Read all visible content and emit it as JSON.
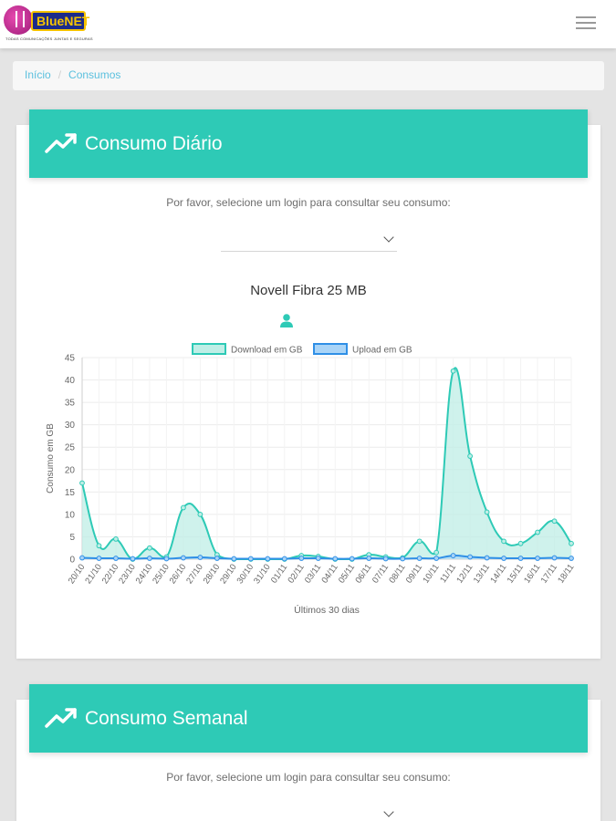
{
  "header": {
    "logo_text": "BlueNET",
    "logo_tagline": "TODAS COMUNICAÇÕES JUNTAS E SEGURAS",
    "menu_icon": "hamburger-icon"
  },
  "breadcrumb": {
    "home": "Início",
    "separator": "/",
    "current": "Consumos"
  },
  "daily": {
    "title": "Consumo Diário",
    "title_icon": "trending-up-icon",
    "prompt": "Por favor, selecione um login para consultar seu consumo:",
    "select_value": "",
    "plan": "Novell Fibra 25 MB",
    "plan_icon": "user-icon"
  },
  "weekly": {
    "title": "Consumo Semanal",
    "title_icon": "trending-up-icon",
    "prompt": "Por favor, selecione um login para consultar seu consumo:",
    "select_value": ""
  },
  "colors": {
    "accent": "#2ecab6",
    "download_line": "#2ecab6",
    "download_fill": "#bfeee6",
    "upload_line": "#2f8fe6",
    "upload_fill": "#a9d4f7"
  },
  "chart_data": {
    "type": "area",
    "xlabel": "Últimos 30 dias",
    "ylabel": "Consumo em GB",
    "ylim": [
      0,
      45
    ],
    "yticks": [
      0,
      5,
      10,
      15,
      20,
      25,
      30,
      35,
      40,
      45
    ],
    "grid": true,
    "legend_position": "top",
    "categories": [
      "20/10",
      "21/10",
      "22/10",
      "23/10",
      "24/10",
      "25/10",
      "26/10",
      "27/10",
      "28/10",
      "29/10",
      "30/10",
      "31/10",
      "01/11",
      "02/11",
      "03/11",
      "04/11",
      "05/11",
      "06/11",
      "07/11",
      "08/11",
      "09/11",
      "10/11",
      "11/11",
      "12/11",
      "13/11",
      "14/11",
      "15/11",
      "16/11",
      "17/11",
      "18/11"
    ],
    "series": [
      {
        "name": "Download em GB",
        "values": [
          17,
          3,
          4.5,
          0,
          2.5,
          0.5,
          11.5,
          10,
          1,
          0,
          0,
          0,
          0,
          0.8,
          0.6,
          0,
          0,
          1,
          0.5,
          0.3,
          4,
          1.5,
          42,
          23,
          10.5,
          4,
          3.5,
          6,
          8.5,
          3.5
        ]
      },
      {
        "name": "Upload em GB",
        "values": [
          0.3,
          0.2,
          0.2,
          0.1,
          0.2,
          0.1,
          0.3,
          0.4,
          0.2,
          0.1,
          0.1,
          0.1,
          0.1,
          0.2,
          0.2,
          0.1,
          0.1,
          0.2,
          0.1,
          0.1,
          0.2,
          0.2,
          0.8,
          0.5,
          0.3,
          0.2,
          0.2,
          0.2,
          0.3,
          0.2
        ]
      }
    ]
  }
}
